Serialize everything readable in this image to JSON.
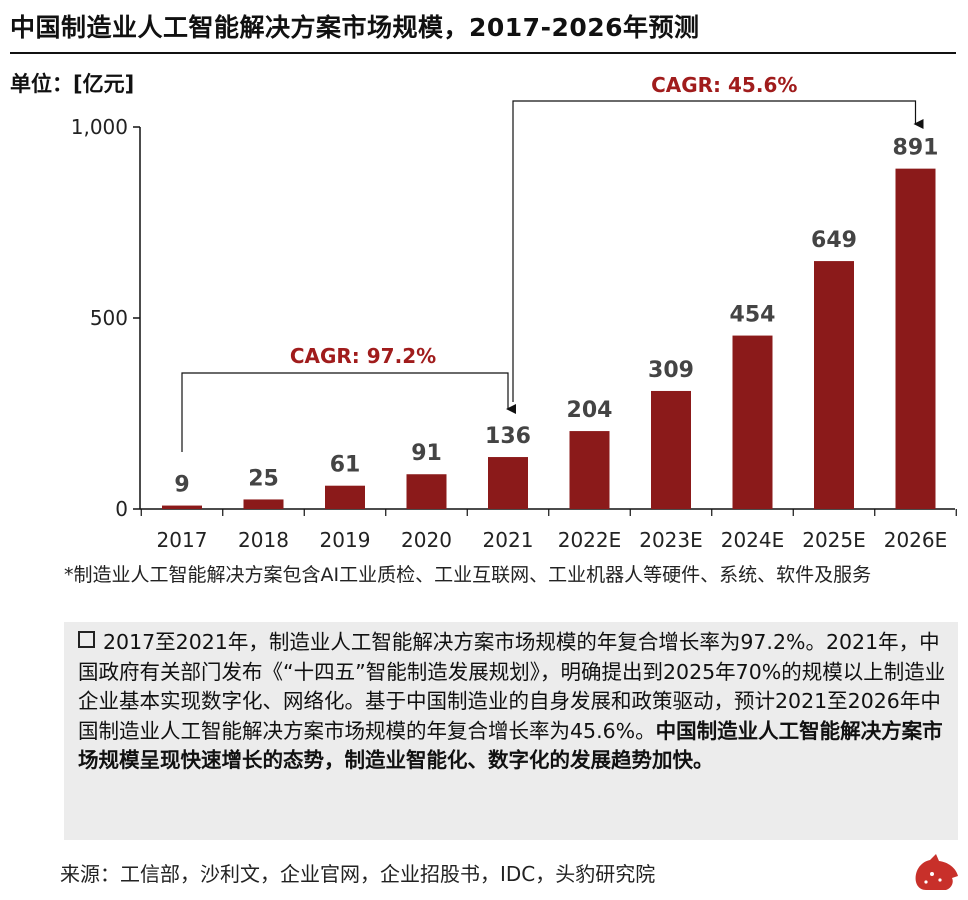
{
  "header": {
    "title": "中国制造业人工智能解决方案市场规模，2017-2026年预测",
    "unit": "单位：[亿元]"
  },
  "chart_data": {
    "type": "bar",
    "categories": [
      "2017",
      "2018",
      "2019",
      "2020",
      "2021",
      "2022E",
      "2023E",
      "2024E",
      "2025E",
      "2026E"
    ],
    "values": [
      9,
      25,
      61,
      91,
      136,
      204,
      309,
      454,
      649,
      891
    ],
    "data_labels": [
      "9",
      "25",
      "61",
      "91",
      "136",
      "204",
      "309",
      "454",
      "649",
      "891"
    ],
    "ylim": [
      0,
      1000
    ],
    "yticks": [
      0,
      500,
      1000
    ],
    "ytick_labels": [
      "0",
      "500",
      "1,000"
    ],
    "bar_color": "#8b1a1a",
    "annotations": [
      {
        "label": "CAGR: 97.2%",
        "from": "2017",
        "to": "2021"
      },
      {
        "label": "CAGR: 45.6%",
        "from": "2021",
        "to": "2026E"
      }
    ],
    "annotation_color": "#a01c1c"
  },
  "footnote": "*制造业人工智能解决方案包含AI工业质检、工业互联网、工业机器人等硬件、系统、软件及服务",
  "summary": {
    "text": "2017至2021年，制造业人工智能解决方案市场规模的年复合增长率为97.2%。2021年，中国政府有关部门发布《“十四五”智能制造发展规划》，明确提出到2025年70%的规模以上制造业企业基本实现数字化、网络化。基于中国制造业的自身发展和政策驱动，预计2021至2026年中国制造业人工智能解决方案市场规模的年复合增长率为45.6%。",
    "bold": "中国制造业人工智能解决方案市场规模呈现快速增长的态势，制造业智能化、数字化的发展趋势加快。"
  },
  "source": "来源：工信部，沙利文，企业官网，企业招股书，IDC，头豹研究院",
  "logo_icon": "leopard-logo-icon"
}
